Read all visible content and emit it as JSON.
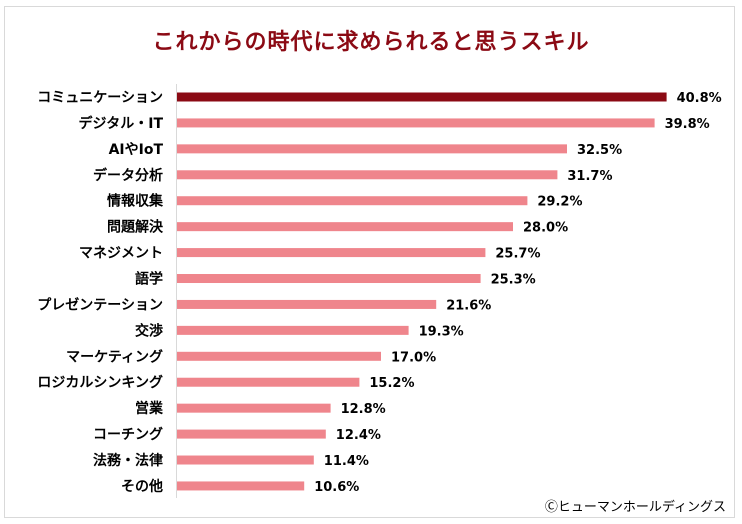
{
  "chart_data": {
    "type": "bar",
    "orientation": "horizontal",
    "title": "これからの時代に求められると思うスキル",
    "categories": [
      "コミュニケーション",
      "デジタル・IT",
      "AIやIoT",
      "データ分析",
      "情報収集",
      "問題解決",
      "マネジメント",
      "語学",
      "プレゼンテーション",
      "交渉",
      "マーケティング",
      "ロジカルシンキング",
      "営業",
      "コーチング",
      "法務・法律",
      "その他"
    ],
    "values": [
      40.8,
      39.8,
      32.5,
      31.7,
      29.2,
      28.0,
      25.7,
      25.3,
      21.6,
      19.3,
      17.0,
      15.2,
      12.8,
      12.4,
      11.4,
      10.6
    ],
    "data_labels": [
      "40.8%",
      "39.8%",
      "32.5%",
      "31.7%",
      "29.2%",
      "28.0%",
      "25.7%",
      "25.3%",
      "21.6%",
      "19.3%",
      "17.0%",
      "15.2%",
      "12.8%",
      "12.4%",
      "11.4%",
      "10.6%"
    ],
    "unit": "%",
    "xlim": [
      0,
      45
    ],
    "grid": false,
    "colors": {
      "highlight": "#8b0a14",
      "default": "#ef858c",
      "title": "#8b0a14"
    }
  },
  "credit": "Ⓒヒューマンホールディングス"
}
